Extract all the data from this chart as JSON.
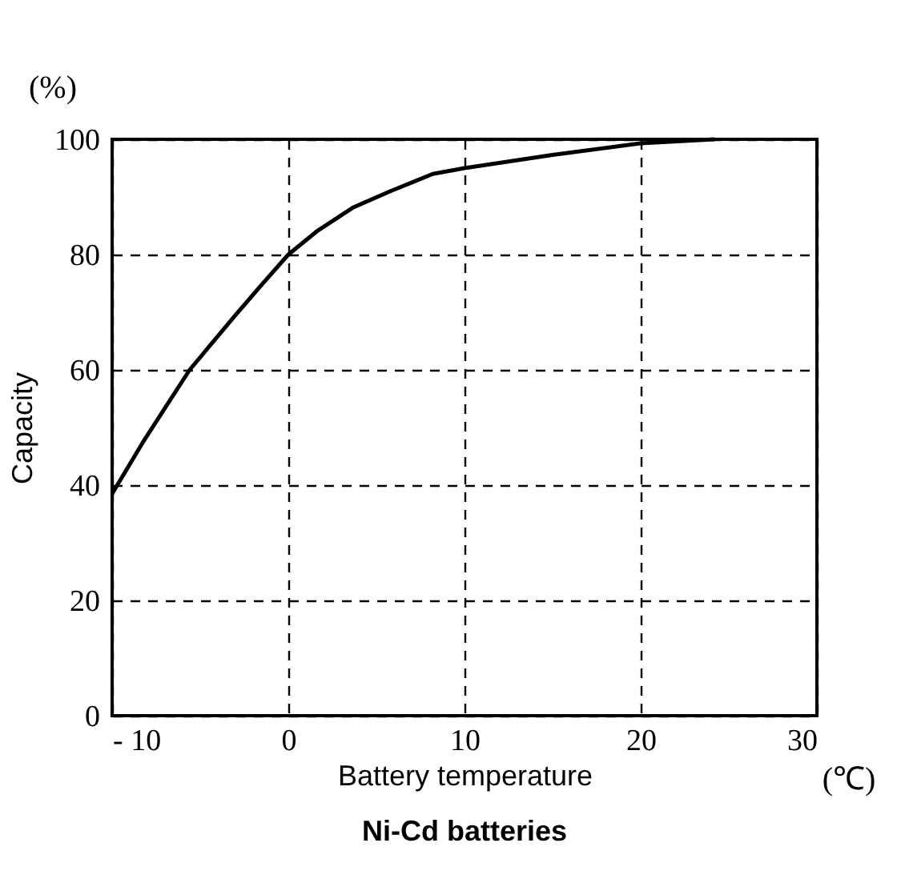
{
  "chart_data": {
    "type": "line",
    "title": "Ni-Cd batteries",
    "xlabel": "Battery temperature",
    "ylabel": "Capacity",
    "annotations": [
      "(%)",
      "(℃)"
    ],
    "x": [
      -10,
      -8.2,
      -5.6,
      -3,
      -1.5,
      0,
      1.6,
      3.7,
      5.8,
      8.2,
      10,
      15,
      20,
      24.2
    ],
    "series": [
      {
        "color": "#000000",
        "values": [
          38.5,
          47.7,
          60,
          69.5,
          74.8,
          80,
          84,
          88.2,
          91,
          94,
          95,
          97.3,
          99.3,
          100
        ]
      }
    ],
    "xlim": [
      -10,
      30
    ],
    "xticks": [
      {
        "value": -10,
        "label": "- 10"
      },
      0,
      10,
      20,
      30
    ],
    "ylim": [
      0,
      100
    ],
    "yticks": [
      0,
      20,
      40,
      60,
      80,
      100
    ],
    "grid": true,
    "line_style": "solid",
    "marker": "none"
  }
}
